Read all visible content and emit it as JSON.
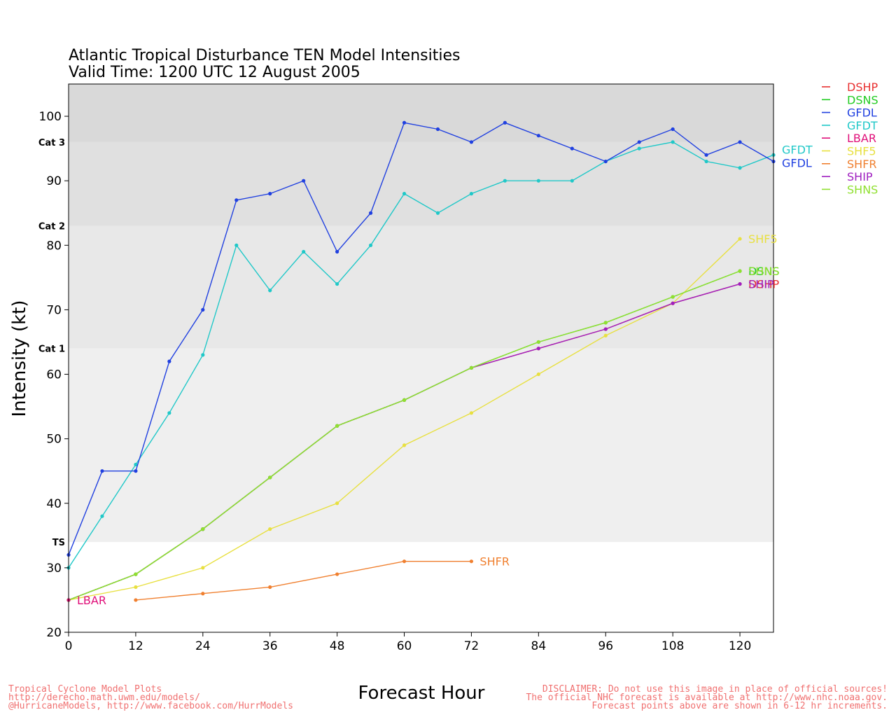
{
  "chart_data": {
    "type": "line",
    "title": "Atlantic Tropical Disturbance TEN Model Intensities",
    "subtitle": "Valid Time: 1200 UTC 12 August 2005",
    "xlabel": "Forecast Hour",
    "ylabel": "Intensity (kt)",
    "xlim": [
      0,
      126
    ],
    "ylim": [
      20,
      105
    ],
    "xticks": [
      0,
      12,
      24,
      36,
      48,
      60,
      72,
      84,
      96,
      108,
      120
    ],
    "yticks": [
      20,
      30,
      40,
      50,
      60,
      70,
      80,
      90,
      100
    ],
    "categories_bands": [
      {
        "label": "TS",
        "from": 34,
        "to": 64,
        "color": "#efefef"
      },
      {
        "label": "Cat 1",
        "from": 64,
        "to": 83,
        "color": "#e8e8e8"
      },
      {
        "label": "Cat 2",
        "from": 83,
        "to": 96,
        "color": "#e0e0e0"
      },
      {
        "label": "Cat 3",
        "from": 96,
        "to": 105,
        "color": "#d9d9d9"
      }
    ],
    "legend_position": "right, outside plot",
    "legend": [
      "DSHP",
      "DSNS",
      "GFDL",
      "GFDT",
      "LBAR",
      "SHF5",
      "SHFR",
      "SHIP",
      "SHNS"
    ],
    "series": [
      {
        "name": "DSHP",
        "color": "#e83030",
        "x": [
          0,
          12,
          24,
          36,
          48,
          60,
          72,
          84,
          96,
          108,
          120
        ],
        "y": [
          25,
          29,
          36,
          44,
          52,
          56,
          61,
          64,
          67,
          71,
          74
        ],
        "end_label": "DSHP"
      },
      {
        "name": "DSNS",
        "color": "#22cc22",
        "x": [
          0,
          12,
          24,
          36,
          48,
          60,
          72,
          84,
          96,
          108,
          120
        ],
        "y": [
          25,
          29,
          36,
          44,
          52,
          56,
          61,
          65,
          68,
          72,
          76
        ],
        "end_label": "DSNS"
      },
      {
        "name": "GFDL",
        "color": "#2040e0",
        "x": [
          0,
          6,
          12,
          18,
          24,
          30,
          36,
          42,
          48,
          54,
          60,
          66,
          72,
          78,
          84,
          90,
          96,
          102,
          108,
          114,
          120,
          126
        ],
        "y": [
          32,
          45,
          45,
          62,
          70,
          87,
          88,
          90,
          79,
          85,
          99,
          98,
          96,
          99,
          97,
          95,
          93,
          96,
          98,
          94,
          96,
          93
        ],
        "end_label": "GFDL"
      },
      {
        "name": "GFDT",
        "color": "#20c8c8",
        "x": [
          0,
          6,
          12,
          18,
          24,
          30,
          36,
          42,
          48,
          54,
          60,
          66,
          72,
          78,
          84,
          90,
          96,
          102,
          108,
          114,
          120,
          126
        ],
        "y": [
          30,
          38,
          46,
          54,
          63,
          80,
          73,
          79,
          74,
          80,
          88,
          85,
          88,
          90,
          90,
          90,
          93,
          95,
          96,
          93,
          92,
          94
        ],
        "end_label": "GFDT"
      },
      {
        "name": "LBAR",
        "color": "#e0107a",
        "x": [
          0
        ],
        "y": [
          25
        ],
        "end_label": "LBAR"
      },
      {
        "name": "SHF5",
        "color": "#e8e040",
        "x": [
          0,
          12,
          24,
          36,
          48,
          60,
          72,
          84,
          96,
          108,
          120
        ],
        "y": [
          25,
          27,
          30,
          36,
          40,
          49,
          54,
          60,
          66,
          71,
          81
        ],
        "end_label": "SHF5"
      },
      {
        "name": "SHFR",
        "color": "#f08030",
        "x": [
          12,
          24,
          36,
          48,
          60,
          72
        ],
        "y": [
          25,
          26,
          27,
          29,
          31,
          31
        ],
        "end_label": "SHFR"
      },
      {
        "name": "SHIP",
        "color": "#a020c0",
        "x": [
          0,
          12,
          24,
          36,
          48,
          60,
          72,
          84,
          96,
          108,
          120
        ],
        "y": [
          25,
          29,
          36,
          44,
          52,
          56,
          61,
          64,
          67,
          71,
          74
        ],
        "end_label": "SHIP"
      },
      {
        "name": "SHNS",
        "color": "#90e030",
        "x": [
          0,
          12,
          24,
          36,
          48,
          60,
          72,
          84,
          96,
          108,
          120
        ],
        "y": [
          25,
          29,
          36,
          44,
          52,
          56,
          61,
          65,
          68,
          72,
          76
        ],
        "end_label": "SHNS"
      }
    ]
  },
  "footer": {
    "left_lines": [
      "Tropical Cyclone Model Plots",
      "http://derecho.math.uwm.edu/models/",
      "@HurricaneModels, http://www.facebook.com/HurrModels"
    ],
    "right_lines": [
      "DISCLAIMER: Do not use this image in place of official sources!",
      "The official NHC forecast is available at http://www.nhc.noaa.gov.",
      "Forecast points above are shown in 6-12 hr increments."
    ]
  }
}
